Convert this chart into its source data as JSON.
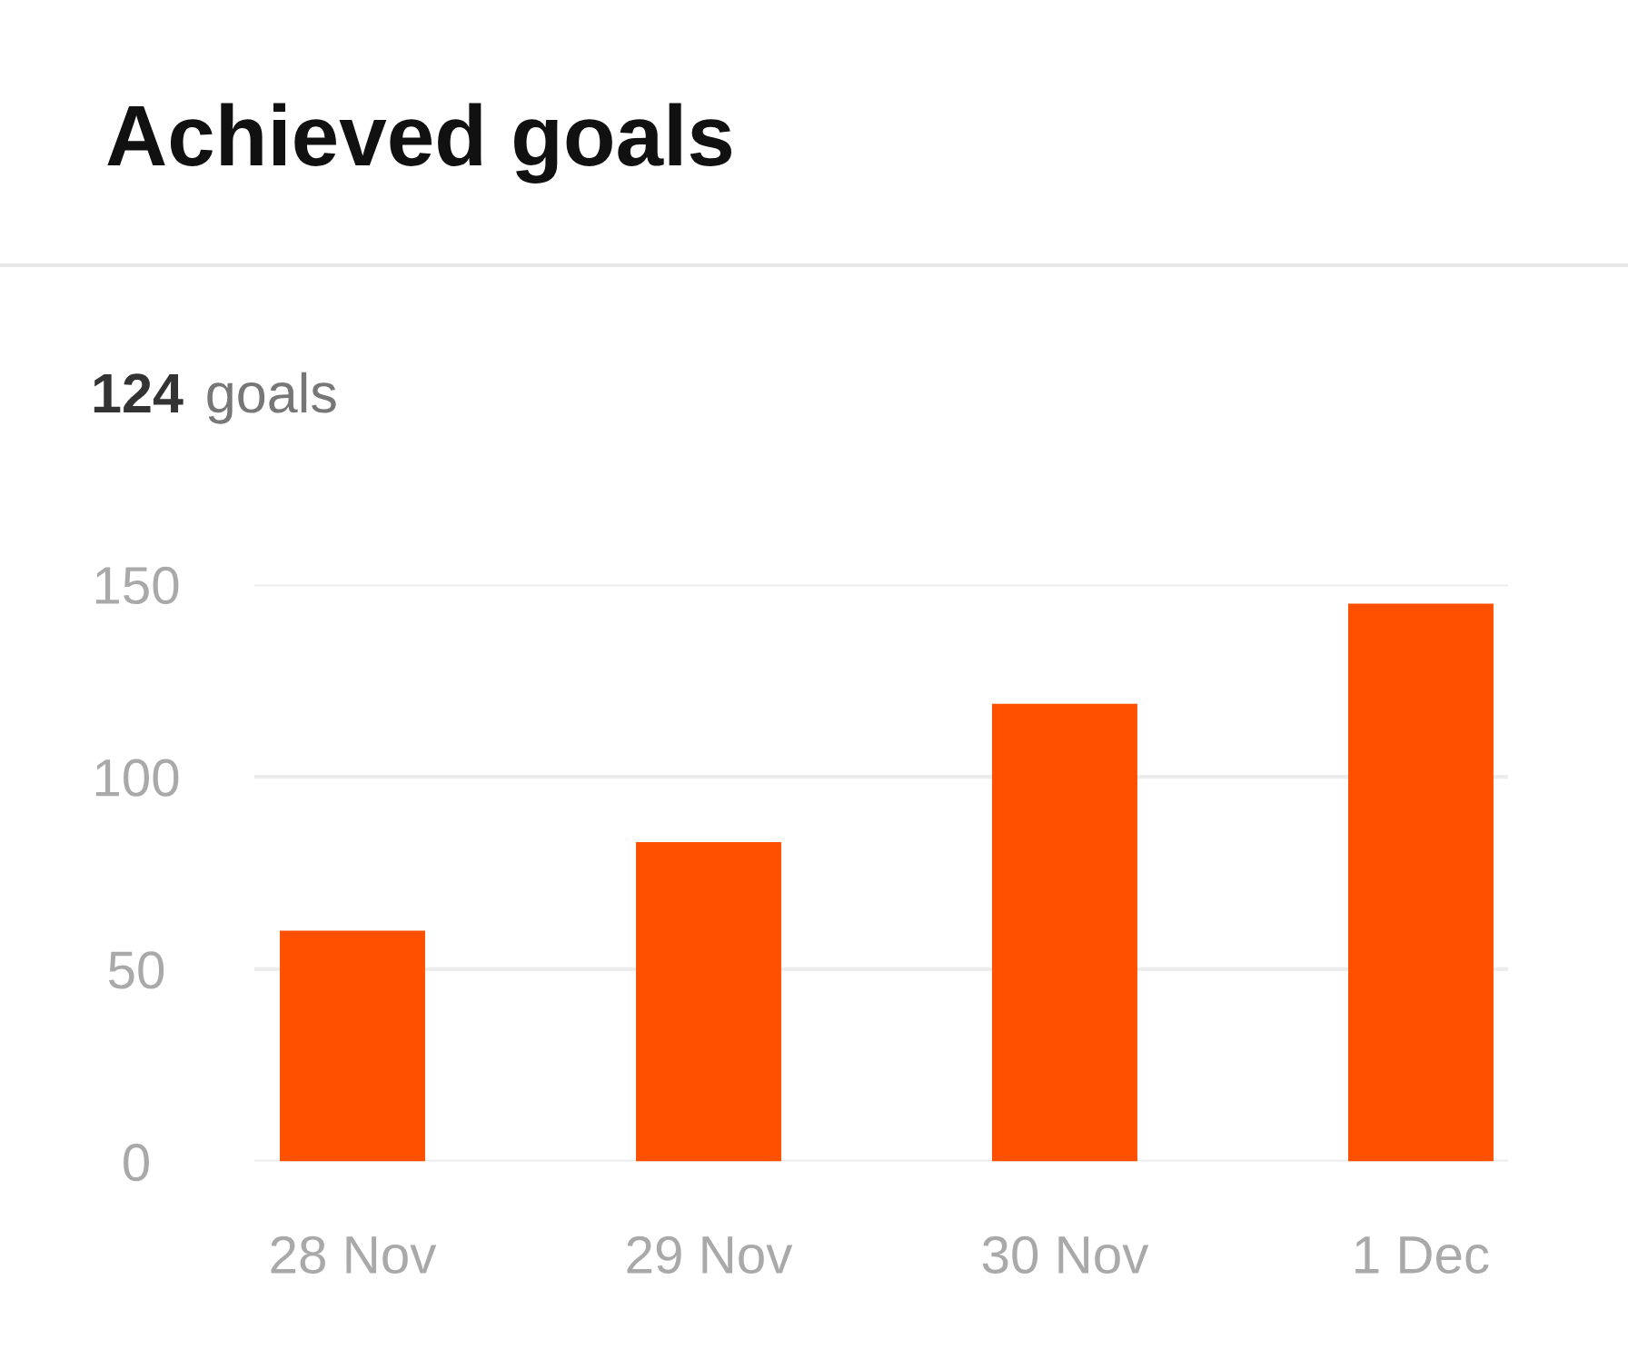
{
  "chart_data": {
    "type": "bar",
    "title": "Achieved goals",
    "subtitle": "124 goals",
    "categories": [
      "28 Nov",
      "29 Nov",
      "30 Nov",
      "1 Dec"
    ],
    "values": [
      60,
      83,
      119,
      145
    ],
    "color": "#ff5000",
    "ylim": [
      0,
      150
    ],
    "yticks": [
      0,
      50,
      100,
      150
    ],
    "grid": "y"
  }
}
